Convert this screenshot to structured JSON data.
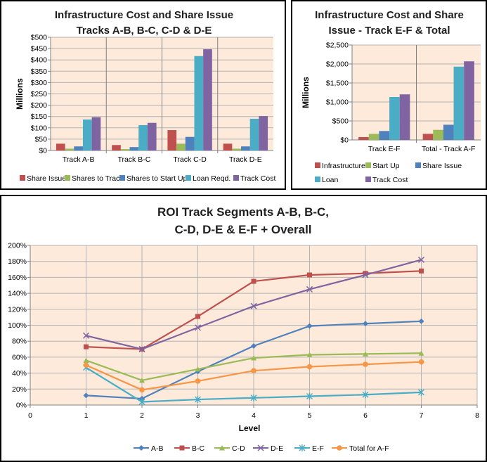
{
  "chart_data": [
    {
      "type": "bar",
      "title": [
        "Infrastructure Cost and Share Issue",
        "Tracks A-B, B-C, C-D & D-E"
      ],
      "ylabel": "Millions",
      "xlabel": "",
      "ylim": [
        0,
        500
      ],
      "yticks": [
        "$0",
        "$50",
        "$100",
        "$150",
        "$200",
        "$250",
        "$300",
        "$350",
        "$400",
        "$450",
        "$500"
      ],
      "categories": [
        "Track A-B",
        "Track B-C",
        "Track C-D",
        "Track D-E"
      ],
      "series": [
        {
          "name": "Share Issue",
          "color": "#c0504d",
          "values": [
            30,
            24,
            90,
            30
          ]
        },
        {
          "name": "Shares to Track",
          "color": "#9bbb59",
          "values": [
            8,
            6,
            30,
            8
          ]
        },
        {
          "name": "Shares to Start Up",
          "color": "#4f81bd",
          "values": [
            18,
            15,
            60,
            18
          ]
        },
        {
          "name": "Loan Reqd.",
          "color": "#4bacc6",
          "values": [
            137,
            112,
            417,
            140
          ]
        },
        {
          "name": "Track Cost",
          "color": "#8064a2",
          "values": [
            147,
            122,
            447,
            152
          ]
        }
      ],
      "legend": "bottom"
    },
    {
      "type": "bar",
      "title": [
        "Infrastructure Cost and Share",
        "Issue - Track E-F & Total"
      ],
      "ylabel": "Millions",
      "xlabel": "",
      "ylim": [
        0,
        2500
      ],
      "yticks": [
        "$0",
        "$500",
        "$1,000",
        "$1,500",
        "$2,000",
        "$2,500"
      ],
      "categories": [
        "Track E-F",
        "Total - Track A-F"
      ],
      "series": [
        {
          "name": "Infrastructure",
          "color": "#c0504d",
          "values": [
            75,
            160
          ]
        },
        {
          "name": "Start Up",
          "color": "#9bbb59",
          "values": [
            160,
            265
          ]
        },
        {
          "name": "Share Issue",
          "color": "#4f81bd",
          "values": [
            235,
            400
          ]
        },
        {
          "name": "Loan",
          "color": "#4bacc6",
          "values": [
            1130,
            1930
          ]
        },
        {
          "name": "Track Cost",
          "color": "#8064a2",
          "values": [
            1200,
            2070
          ]
        }
      ],
      "legend": "bottom"
    },
    {
      "type": "line",
      "title": [
        "ROI  Track  Segments A-B, B-C,",
        "C-D, D-E & E-F + Overall"
      ],
      "xlabel": "Level",
      "ylabel": "",
      "xlim": [
        0,
        8
      ],
      "ylim": [
        0,
        200
      ],
      "xticks": [
        "0",
        "1",
        "2",
        "3",
        "4",
        "5",
        "6",
        "7",
        "8"
      ],
      "yticks": [
        "0%",
        "20%",
        "40%",
        "60%",
        "80%",
        "100%",
        "120%",
        "140%",
        "160%",
        "180%",
        "200%"
      ],
      "x": [
        1,
        2,
        3,
        4,
        5,
        6,
        7
      ],
      "series": [
        {
          "name": "A-B",
          "color": "#4f81bd",
          "marker": "diamond",
          "values": [
            12,
            8,
            42,
            74,
            99,
            102,
            105
          ]
        },
        {
          "name": "B-C",
          "color": "#c0504d",
          "marker": "square",
          "values": [
            73,
            70,
            111,
            155,
            163,
            165,
            168
          ]
        },
        {
          "name": "C-D",
          "color": "#9bbb59",
          "marker": "triangle",
          "values": [
            56,
            31,
            45,
            59,
            63,
            64,
            65
          ]
        },
        {
          "name": "D-E",
          "color": "#8064a2",
          "marker": "x",
          "values": [
            87,
            70,
            97,
            124,
            145,
            163,
            182
          ]
        },
        {
          "name": "E-F",
          "color": "#4bacc6",
          "marker": "star",
          "values": [
            47,
            4,
            7,
            9,
            11,
            13,
            16
          ]
        },
        {
          "name": "Total for A-F",
          "color": "#f79646",
          "marker": "circle",
          "values": [
            50,
            19,
            30,
            43,
            48,
            51,
            54
          ]
        }
      ],
      "legend": "bottom"
    }
  ]
}
